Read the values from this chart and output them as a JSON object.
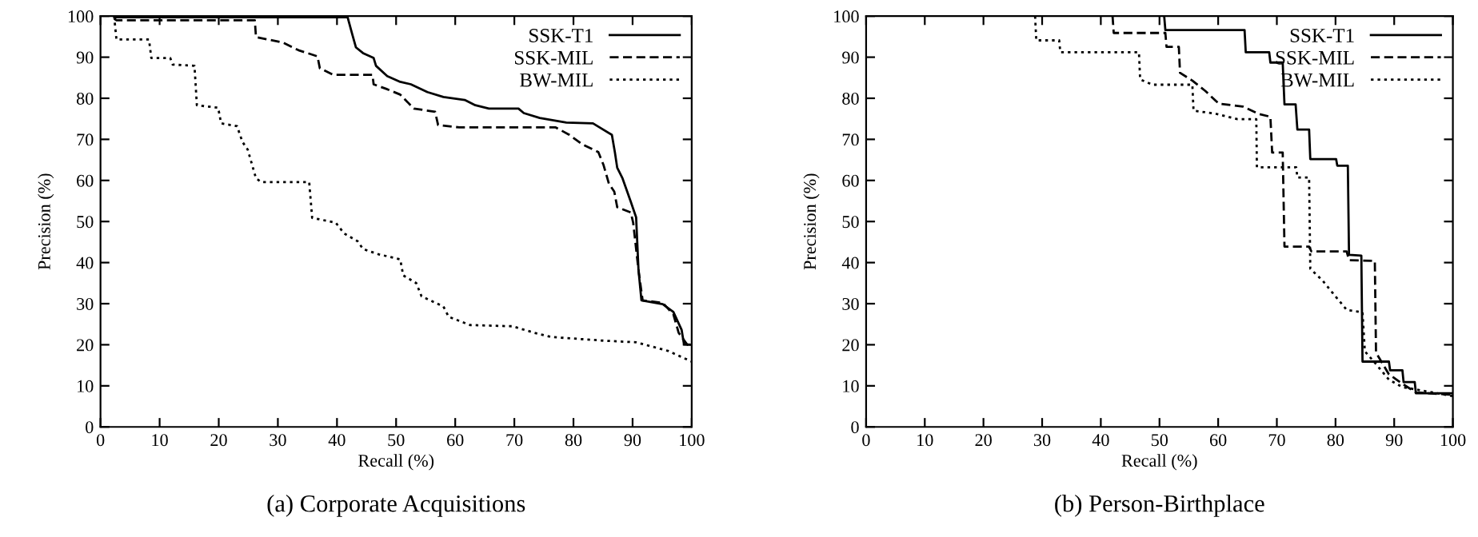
{
  "chart_data": [
    {
      "type": "line",
      "title": "(a) Corporate Acquisitions",
      "xlabel": "Recall (%)",
      "ylabel": "Precision (%)",
      "xlim": [
        0,
        100
      ],
      "ylim": [
        0,
        100
      ],
      "xticks": [
        0,
        10,
        20,
        30,
        40,
        50,
        60,
        70,
        80,
        90,
        100
      ],
      "yticks": [
        0,
        10,
        20,
        30,
        40,
        50,
        60,
        70,
        80,
        90,
        100
      ],
      "grid": false,
      "legend": "top right",
      "marker": "none",
      "series": [
        {
          "name": "SSK-T1",
          "color": "#000000",
          "line_style": "solid",
          "x": [
            2.5,
            41.8,
            42.6,
            43.2,
            44.4,
            46.2,
            46.6,
            48.5,
            50.7,
            52.5,
            55.3,
            58,
            61.6,
            63.4,
            65.7,
            70.7,
            71.6,
            74.3,
            78.8,
            83.3,
            86.5,
            87,
            87.4,
            88.3,
            89.7,
            90.6,
            91,
            91.5,
            95.1,
            96.9,
            98.3,
            98.7,
            100
          ],
          "values": [
            99.7,
            99.7,
            95.5,
            92.4,
            91,
            89.8,
            87.9,
            85.4,
            84,
            83.4,
            81.5,
            80.3,
            79.6,
            78.3,
            77.5,
            77.5,
            76.4,
            75.2,
            74.1,
            73.9,
            71.1,
            66.9,
            63.1,
            60.5,
            54.8,
            51,
            38.2,
            30.8,
            29.9,
            28,
            23.6,
            20.1,
            20
          ]
        },
        {
          "name": "SSK-MIL",
          "color": "#000000",
          "line_style": "dashed",
          "x": [
            2.3,
            2.7,
            26.1,
            26.3,
            30.8,
            33.5,
            36.7,
            37.1,
            39.4,
            46,
            46.2,
            48.5,
            50.7,
            53,
            56.6,
            57.1,
            60.7,
            77,
            79.3,
            81.5,
            84.2,
            85.1,
            86,
            86.9,
            87.4,
            89.7,
            90.1,
            91,
            91.7,
            95.1,
            96.9,
            97.8,
            99.2,
            100
          ],
          "values": [
            99.4,
            99,
            99,
            94.9,
            93.6,
            91.7,
            90.2,
            87.3,
            85.7,
            85.7,
            83.4,
            82.2,
            80.9,
            77.5,
            76.7,
            73.5,
            72.9,
            72.9,
            71.1,
            68.8,
            66.9,
            63.7,
            59.2,
            57.3,
            53.5,
            52.2,
            49.7,
            38.2,
            30.8,
            30.2,
            27.4,
            22.9,
            20.1,
            19.4
          ]
        },
        {
          "name": "BW-MIL",
          "color": "#000000",
          "line_style": "dotted",
          "x": [
            2.3,
            2.7,
            8.2,
            8.6,
            11.8,
            12.2,
            15.9,
            16.3,
            19.9,
            20.4,
            23.1,
            24,
            24.9,
            26.3,
            27.2,
            35.3,
            35.8,
            39.8,
            41.2,
            43.5,
            44.4,
            47.1,
            50.7,
            51.2,
            53.4,
            54.3,
            58,
            58.9,
            62.5,
            69.7,
            73.4,
            76.2,
            85.1,
            90.6,
            96,
            100
          ],
          "values": [
            100,
            94.3,
            94.3,
            89.8,
            89.8,
            88.2,
            87.9,
            78.3,
            77.7,
            73.9,
            73.2,
            69.4,
            67.5,
            60.5,
            59.6,
            59.6,
            50.9,
            49.7,
            47.1,
            45.2,
            43.3,
            42,
            40.8,
            36.9,
            35,
            31.8,
            29.3,
            26.8,
            24.8,
            24.5,
            22.9,
            21.9,
            21,
            20.6,
            18.5,
            15.9
          ]
        }
      ]
    },
    {
      "type": "line",
      "title": "(b) Person-Birthplace",
      "xlabel": "Recall (%)",
      "ylabel": "Precision (%)",
      "xlim": [
        0,
        100
      ],
      "ylim": [
        0,
        100
      ],
      "xticks": [
        0,
        10,
        20,
        30,
        40,
        50,
        60,
        70,
        80,
        90,
        100
      ],
      "yticks": [
        0,
        10,
        20,
        30,
        40,
        50,
        60,
        70,
        80,
        90,
        100
      ],
      "grid": false,
      "legend": "top right",
      "marker": "none",
      "series": [
        {
          "name": "SSK-T1",
          "color": "#000000",
          "line_style": "solid",
          "x": [
            50.8,
            51,
            64.5,
            64.7,
            68.7,
            68.9,
            71,
            71.3,
            73.2,
            73.5,
            75.5,
            75.7,
            80.1,
            80.3,
            82.1,
            82.3,
            84.4,
            84.6,
            89.1,
            89.3,
            91.4,
            91.6,
            93.5,
            93.7,
            100
          ],
          "values": [
            100,
            96.6,
            96.6,
            91.2,
            91.2,
            88.7,
            88.7,
            78.5,
            78.5,
            72.4,
            72.4,
            65.2,
            65.2,
            63.6,
            63.6,
            41.9,
            41.7,
            15.9,
            15.9,
            13.8,
            13.8,
            10.9,
            10.9,
            8.2,
            8.2
          ]
        },
        {
          "name": "SSK-MIL",
          "color": "#000000",
          "line_style": "dashed",
          "x": [
            42,
            42.2,
            51,
            51.2,
            53.3,
            53.5,
            55.6,
            57.8,
            60.1,
            64.2,
            66.9,
            68.9,
            69.2,
            71,
            71.3,
            75.5,
            75.9,
            81.9,
            82.3,
            86.7,
            86.9,
            89.1,
            91.4,
            93.7,
            100
          ],
          "values": [
            100,
            95.9,
            95.9,
            92.5,
            92.5,
            86.2,
            84.3,
            81.8,
            78.7,
            78,
            76.2,
            75.5,
            66.8,
            66.8,
            43.9,
            43.9,
            42.7,
            42.7,
            40.6,
            40.4,
            18.1,
            12.8,
            10.5,
            8.4,
            7.8
          ]
        },
        {
          "name": "BW-MIL",
          "color": "#000000",
          "line_style": "dotted",
          "x": [
            28.8,
            29,
            32.9,
            33.1,
            46.5,
            46.7,
            48.8,
            55.6,
            55.8,
            59.7,
            63.3,
            66.5,
            66.6,
            73.3,
            73.5,
            75.5,
            75.7,
            77.8,
            80.1,
            81.9,
            84.6,
            85,
            86.9,
            89.1,
            91.4,
            100
          ],
          "values": [
            100,
            94.1,
            94.1,
            91.2,
            91.2,
            84.6,
            83.3,
            83.3,
            77,
            76.2,
            74.9,
            74.9,
            63.2,
            63.2,
            60.7,
            60.7,
            38.5,
            35.6,
            31.6,
            28.5,
            27.9,
            18.4,
            15.3,
            11.5,
            9.7,
            7.5
          ]
        }
      ]
    }
  ]
}
